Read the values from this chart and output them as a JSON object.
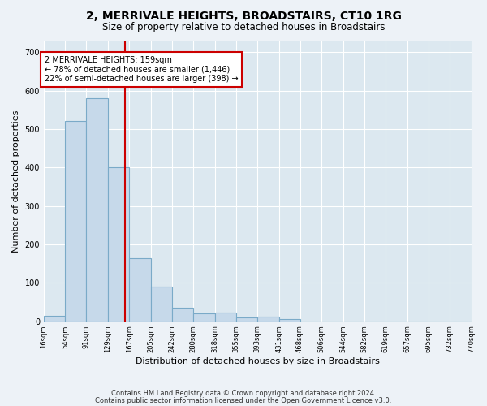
{
  "title": "2, MERRIVALE HEIGHTS, BROADSTAIRS, CT10 1RG",
  "subtitle": "Size of property relative to detached houses in Broadstairs",
  "xlabel": "Distribution of detached houses by size in Broadstairs",
  "ylabel": "Number of detached properties",
  "bar_values": [
    15,
    520,
    580,
    400,
    165,
    90,
    35,
    20,
    22,
    10,
    12,
    5,
    0,
    0,
    0,
    0,
    0,
    0,
    0,
    0
  ],
  "bin_edges": [
    16,
    54,
    91,
    129,
    167,
    205,
    242,
    280,
    318,
    355,
    393,
    431,
    468,
    506,
    544,
    582,
    619,
    657,
    695,
    732,
    770
  ],
  "tick_labels": [
    "16sqm",
    "54sqm",
    "91sqm",
    "129sqm",
    "167sqm",
    "205sqm",
    "242sqm",
    "280sqm",
    "318sqm",
    "355sqm",
    "393sqm",
    "431sqm",
    "468sqm",
    "506sqm",
    "544sqm",
    "582sqm",
    "619sqm",
    "657sqm",
    "695sqm",
    "732sqm",
    "770sqm"
  ],
  "bar_color": "#c6d9ea",
  "bar_edge_color": "#7aaac8",
  "property_line_x": 159,
  "annotation_title": "2 MERRIVALE HEIGHTS: 159sqm",
  "annotation_line1": "← 78% of detached houses are smaller (1,446)",
  "annotation_line2": "22% of semi-detached houses are larger (398) →",
  "annotation_box_color": "#ffffff",
  "annotation_box_edge": "#cc0000",
  "red_line_color": "#cc0000",
  "yticks": [
    0,
    100,
    200,
    300,
    400,
    500,
    600,
    700
  ],
  "ylim": [
    0,
    730
  ],
  "footer1": "Contains HM Land Registry data © Crown copyright and database right 2024.",
  "footer2": "Contains public sector information licensed under the Open Government Licence v3.0.",
  "bg_color": "#edf2f7",
  "plot_bg_color": "#dce8f0",
  "grid_color": "#ffffff",
  "title_fontsize": 10,
  "subtitle_fontsize": 8.5,
  "ylabel_fontsize": 8,
  "xlabel_fontsize": 8,
  "tick_fontsize": 7,
  "footer_fontsize": 6
}
